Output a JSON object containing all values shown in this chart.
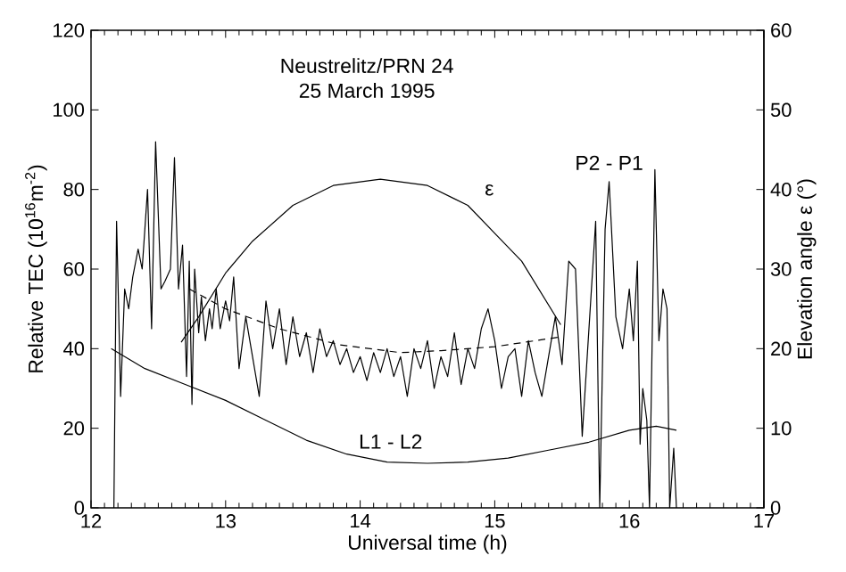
{
  "chart_data": {
    "type": "line",
    "title": "Neustrelitz/PRN 24",
    "subtitle": "25 March 1995",
    "xlabel": "Universal time (h)",
    "ylabel": "Relative TEC (10$^{16}$m$^{-2}$)",
    "y2label": "Elevation angle ε (°)",
    "xlim": [
      12,
      17
    ],
    "xticks": [
      12,
      13,
      14,
      15,
      16,
      17
    ],
    "ylim": [
      0,
      120
    ],
    "yticks": [
      0,
      20,
      40,
      60,
      80,
      100,
      120
    ],
    "y2lim": [
      0,
      60
    ],
    "y2ticks": [
      0,
      10,
      20,
      30,
      40,
      50,
      60
    ],
    "grid": false,
    "marker": "none",
    "series": [
      {
        "name": "P2 - P1",
        "color": "#000000",
        "line_style": "solid",
        "x": [
          12.17,
          12.19,
          12.22,
          12.25,
          12.28,
          12.31,
          12.35,
          12.38,
          12.42,
          12.45,
          12.48,
          12.52,
          12.55,
          12.59,
          12.62,
          12.65,
          12.68,
          12.71,
          12.73,
          12.75,
          12.77,
          12.8,
          12.82,
          12.85,
          12.88,
          12.9,
          12.93,
          12.96,
          13.0,
          13.03,
          13.06,
          13.1,
          13.15,
          13.2,
          13.25,
          13.3,
          13.35,
          13.4,
          13.45,
          13.5,
          13.55,
          13.6,
          13.65,
          13.7,
          13.75,
          13.8,
          13.85,
          13.9,
          13.95,
          14.0,
          14.05,
          14.1,
          14.15,
          14.2,
          14.25,
          14.3,
          14.35,
          14.4,
          14.45,
          14.5,
          14.55,
          14.6,
          14.65,
          14.7,
          14.75,
          14.8,
          14.85,
          14.9,
          14.95,
          15.0,
          15.05,
          15.1,
          15.15,
          15.2,
          15.25,
          15.3,
          15.35,
          15.4,
          15.45,
          15.5,
          15.55,
          15.6,
          15.65,
          15.7,
          15.75,
          15.78,
          15.82,
          15.85,
          15.9,
          15.95,
          16.0,
          16.03,
          16.06,
          16.08,
          16.1,
          16.13,
          16.15,
          16.19,
          16.22,
          16.25,
          16.28,
          16.3,
          16.33,
          16.35
        ],
        "values": [
          0,
          72,
          28,
          55,
          50,
          58,
          65,
          60,
          80,
          45,
          92,
          55,
          57,
          60,
          88,
          55,
          66,
          33,
          62,
          26,
          60,
          44,
          53,
          42,
          50,
          45,
          55,
          45,
          52,
          47,
          58,
          35,
          48,
          38,
          28,
          52,
          40,
          50,
          36,
          48,
          38,
          44,
          34,
          45,
          38,
          42,
          36,
          40,
          34,
          38,
          32,
          39,
          34,
          40,
          33,
          38,
          28,
          40,
          35,
          42,
          30,
          38,
          33,
          44,
          31,
          40,
          35,
          45,
          50,
          42,
          30,
          38,
          40,
          28,
          42,
          34,
          28,
          38,
          48,
          36,
          62,
          60,
          18,
          45,
          72,
          0,
          70,
          82,
          48,
          40,
          55,
          42,
          62,
          16,
          30,
          22,
          0,
          85,
          42,
          55,
          50,
          0,
          15,
          0
        ]
      },
      {
        "color": "#000000",
        "line_style": "dashed",
        "x": [
          12.73,
          13.0,
          13.4,
          13.84,
          14.3,
          14.6,
          15.0,
          15.5
        ],
        "values": [
          55,
          50,
          45,
          41,
          39,
          39.5,
          40.5,
          43
        ]
      },
      {
        "name": "L1 - L2",
        "color": "#000000",
        "line_style": "solid",
        "x": [
          12.15,
          12.4,
          12.7,
          13.0,
          13.3,
          13.6,
          13.9,
          14.2,
          14.5,
          14.8,
          15.1,
          15.4,
          15.7,
          16.0,
          16.2,
          16.35
        ],
        "values": [
          40,
          35,
          31,
          27,
          22,
          17,
          13.5,
          11.5,
          11.2,
          11.5,
          12.5,
          14.5,
          16.5,
          19.5,
          20.5,
          19.5
        ]
      },
      {
        "name": "ε",
        "color": "#000000",
        "line_style": "solid",
        "axis": "y2",
        "x": [
          12.67,
          12.8,
          13.0,
          13.2,
          13.5,
          13.8,
          14.15,
          14.5,
          14.8,
          15.0,
          15.2,
          15.49
        ],
        "values": [
          20.8,
          24,
          29.5,
          33.5,
          38,
          40.5,
          41.3,
          40.5,
          38,
          34.5,
          31,
          23
        ]
      }
    ]
  }
}
